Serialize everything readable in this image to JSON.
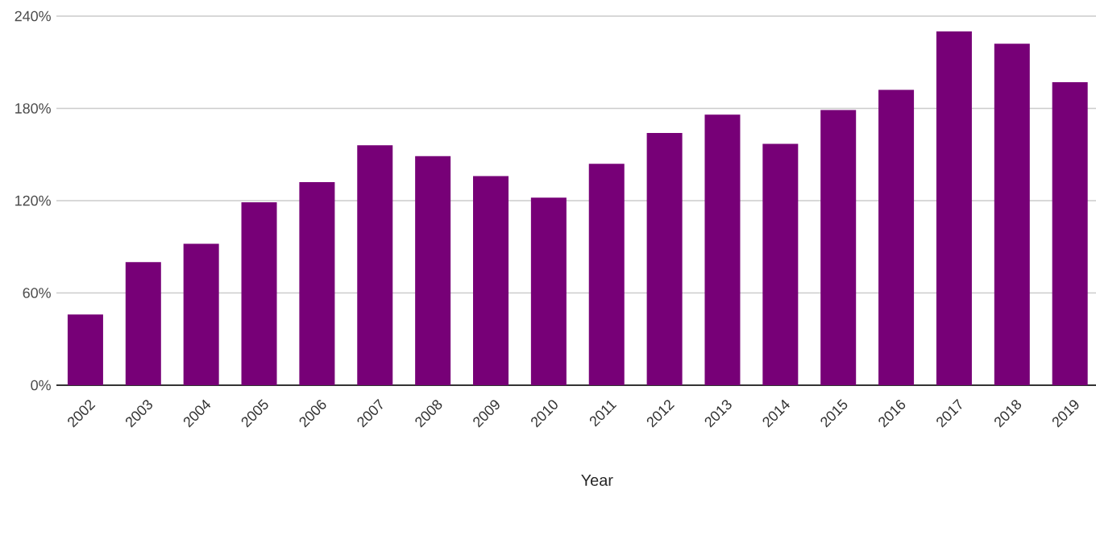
{
  "chart_data": {
    "type": "bar",
    "xlabel": "Year",
    "categories": [
      "2002",
      "2003",
      "2004",
      "2005",
      "2006",
      "2007",
      "2008",
      "2009",
      "2010",
      "2011",
      "2012",
      "2013",
      "2014",
      "2015",
      "2016",
      "2017",
      "2018",
      "2019"
    ],
    "values": [
      46,
      80,
      92,
      119,
      132,
      156,
      149,
      136,
      122,
      144,
      164,
      176,
      157,
      179,
      192,
      230,
      222,
      197
    ],
    "color": "#770077",
    "ylim": [
      0,
      240
    ],
    "yticks": [
      {
        "value": 0,
        "label": "0%"
      },
      {
        "value": 60,
        "label": "60%"
      },
      {
        "value": 120,
        "label": "120%"
      },
      {
        "value": 180,
        "label": "180%"
      },
      {
        "value": 240,
        "label": "240%"
      }
    ],
    "grid": "y"
  }
}
